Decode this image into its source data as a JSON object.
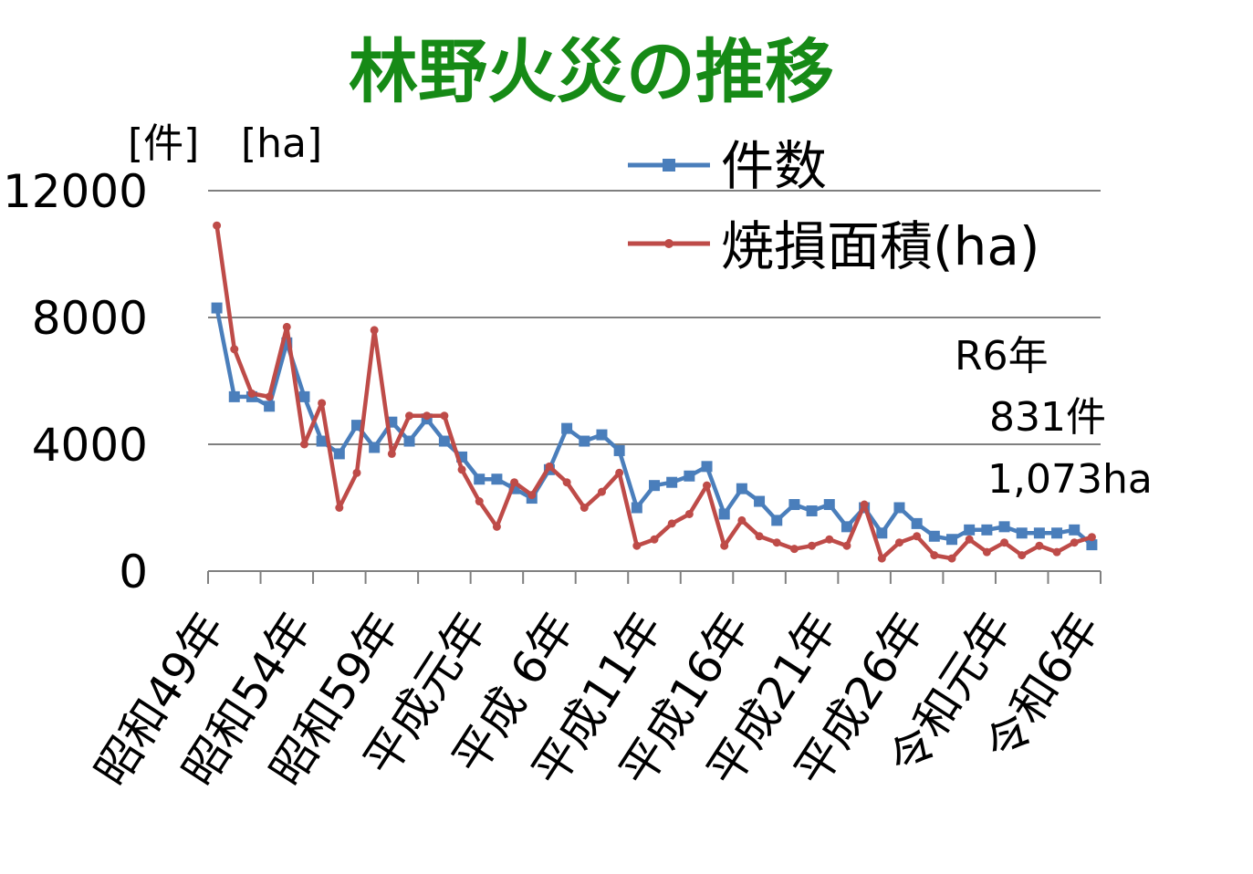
{
  "chart_data": {
    "type": "line",
    "title": "林野火災の推移",
    "units": {
      "left": "[件]",
      "right": "[ha]"
    },
    "ylim": [
      0,
      12000
    ],
    "yticks": [
      "12000",
      "8000",
      "4000",
      "0"
    ],
    "ytick_values": [
      12000,
      8000,
      4000,
      0
    ],
    "xtick_labels": [
      "昭和49年",
      "昭和54年",
      "昭和59年",
      "平成元年",
      "平成 6年",
      "平成11年",
      "平成16年",
      "平成21年",
      "平成26年",
      "令和元年",
      "令和6年"
    ],
    "grid": true,
    "legend": "top-right",
    "series": [
      {
        "name": "件数",
        "color": "#4a7ebb",
        "marker": "square",
        "values": [
          8300,
          5500,
          5500,
          5200,
          7200,
          5500,
          4100,
          3700,
          4600,
          3900,
          4700,
          4100,
          4800,
          4100,
          3600,
          2900,
          2900,
          2600,
          2300,
          3200,
          4500,
          4100,
          4300,
          3800,
          2000,
          2700,
          2800,
          3000,
          3300,
          1800,
          2600,
          2200,
          1600,
          2100,
          1900,
          2100,
          1400,
          2000,
          1200,
          2000,
          1500,
          1100,
          1000,
          1300,
          1300,
          1400,
          1200,
          1200,
          1200,
          1300,
          831
        ]
      },
      {
        "name": "焼損面積(ha)",
        "color": "#be4b48",
        "marker": "circle",
        "values": [
          10900,
          7000,
          5600,
          5500,
          7700,
          4000,
          5300,
          2000,
          3100,
          7600,
          3700,
          4900,
          4900,
          4900,
          3200,
          2200,
          1400,
          2800,
          2400,
          3300,
          2800,
          2000,
          2500,
          3100,
          800,
          1000,
          1500,
          1800,
          2700,
          800,
          1600,
          1100,
          900,
          700,
          800,
          1000,
          800,
          2100,
          400,
          900,
          1100,
          500,
          400,
          1000,
          600,
          900,
          500,
          800,
          600,
          900,
          1073
        ]
      }
    ],
    "annotation": {
      "line1": "R6年",
      "line2": "831件",
      "line3": "1,073ha"
    }
  }
}
